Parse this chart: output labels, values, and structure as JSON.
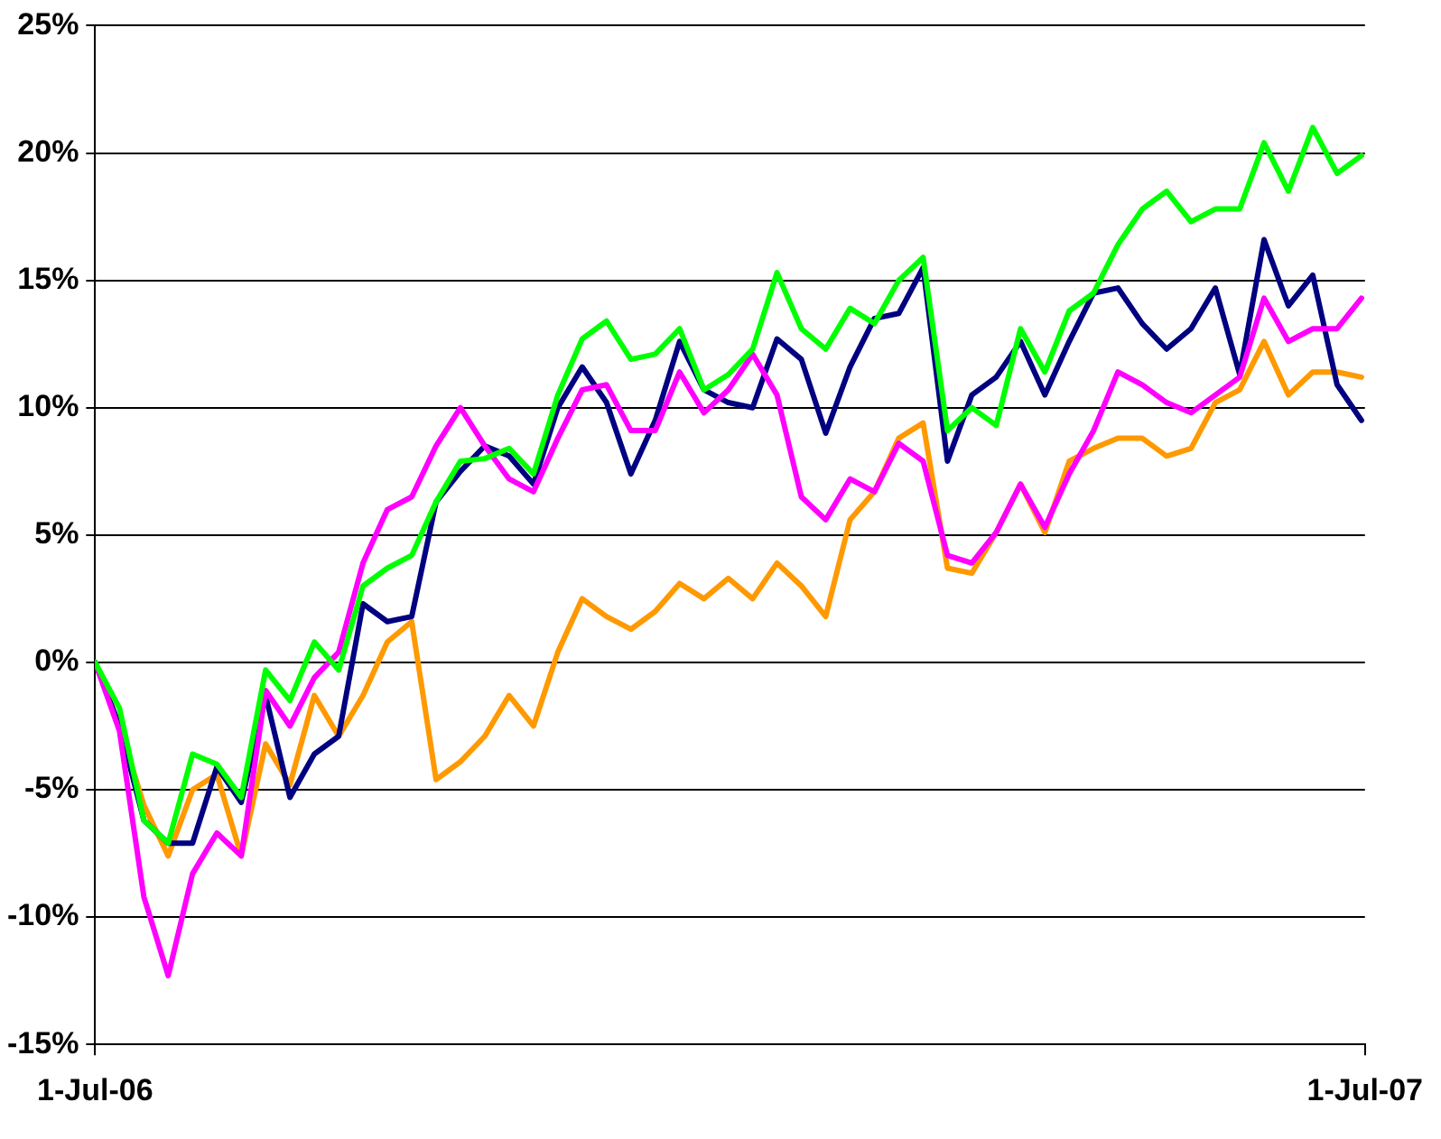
{
  "chart_data": {
    "type": "line",
    "x": [
      "2006-07-01",
      "2006-07-08",
      "2006-07-15",
      "2006-07-22",
      "2006-07-29",
      "2006-08-05",
      "2006-08-12",
      "2006-08-19",
      "2006-08-26",
      "2006-09-02",
      "2006-09-09",
      "2006-09-16",
      "2006-09-23",
      "2006-09-30",
      "2006-10-07",
      "2006-10-14",
      "2006-10-21",
      "2006-10-28",
      "2006-11-04",
      "2006-11-11",
      "2006-11-18",
      "2006-11-25",
      "2006-12-02",
      "2006-12-09",
      "2006-12-16",
      "2006-12-23",
      "2006-12-30",
      "2007-01-06",
      "2007-01-13",
      "2007-01-20",
      "2007-01-27",
      "2007-02-03",
      "2007-02-10",
      "2007-02-17",
      "2007-02-24",
      "2007-03-03",
      "2007-03-10",
      "2007-03-17",
      "2007-03-24",
      "2007-03-31",
      "2007-04-07",
      "2007-04-14",
      "2007-04-21",
      "2007-04-28",
      "2007-05-05",
      "2007-05-12",
      "2007-05-19",
      "2007-05-26",
      "2007-06-02",
      "2007-06-09",
      "2007-06-16",
      "2007-06-23",
      "2007-06-30"
    ],
    "series": [
      {
        "color": "#ff9900",
        "values": [
          0,
          -2.5,
          -5.6,
          -7.6,
          -5.0,
          -4.4,
          -7.6,
          -3.2,
          -4.8,
          -1.3,
          -2.9,
          -1.3,
          0.8,
          1.6,
          -4.6,
          -3.9,
          -2.9,
          -1.3,
          -2.5,
          0.4,
          2.5,
          1.8,
          1.3,
          2.0,
          3.1,
          2.5,
          3.3,
          2.5,
          3.9,
          3.0,
          1.8,
          5.6,
          6.7,
          8.8,
          9.4,
          3.7,
          3.5,
          5.1,
          7.0,
          5.1,
          7.9,
          8.4,
          8.8,
          8.8,
          8.1,
          8.4,
          10.2,
          10.7,
          12.6,
          10.5,
          11.4,
          11.4,
          11.2
        ]
      },
      {
        "color": "#000080",
        "values": [
          0,
          -2.5,
          -6.2,
          -7.1,
          -7.1,
          -4.1,
          -5.5,
          -1.3,
          -5.3,
          -3.6,
          -2.9,
          2.3,
          1.6,
          1.8,
          6.3,
          7.5,
          8.5,
          8.1,
          7.0,
          10.0,
          11.6,
          10.2,
          7.4,
          9.5,
          12.6,
          10.7,
          10.2,
          10.0,
          12.7,
          11.9,
          9.0,
          11.6,
          13.5,
          13.7,
          15.5,
          7.9,
          10.5,
          11.2,
          12.6,
          10.5,
          12.6,
          14.5,
          14.7,
          13.3,
          12.3,
          13.1,
          14.7,
          11.3,
          16.6,
          14.0,
          15.2,
          10.9,
          9.5
        ]
      },
      {
        "color": "#ff00ff",
        "values": [
          0,
          -2.7,
          -9.2,
          -12.3,
          -8.3,
          -6.7,
          -7.6,
          -1.1,
          -2.5,
          -0.6,
          0.4,
          3.9,
          6.0,
          6.5,
          8.5,
          10.0,
          8.5,
          7.2,
          6.7,
          8.8,
          10.7,
          10.9,
          9.1,
          9.1,
          11.4,
          9.8,
          10.7,
          12.1,
          10.5,
          6.5,
          5.6,
          7.2,
          6.7,
          8.6,
          7.9,
          4.2,
          3.9,
          5.1,
          7.0,
          5.3,
          7.4,
          9.1,
          11.4,
          10.9,
          10.2,
          9.8,
          10.5,
          11.2,
          14.3,
          12.6,
          13.1,
          13.1,
          14.3
        ]
      },
      {
        "color": "#00ff00",
        "values": [
          0,
          -1.8,
          -6.2,
          -7.1,
          -3.6,
          -4.0,
          -5.3,
          -0.3,
          -1.5,
          0.8,
          -0.3,
          3.0,
          3.7,
          4.2,
          6.3,
          7.9,
          8.0,
          8.4,
          7.4,
          10.5,
          12.7,
          13.4,
          11.9,
          12.1,
          13.1,
          10.7,
          11.3,
          12.3,
          15.3,
          13.1,
          12.3,
          13.9,
          13.3,
          15.0,
          15.9,
          9.1,
          10.0,
          9.3,
          13.1,
          11.4,
          13.8,
          14.5,
          16.4,
          17.8,
          18.5,
          17.3,
          17.8,
          17.8,
          20.4,
          18.5,
          21.0,
          19.2,
          19.9
        ]
      }
    ],
    "xlim": [
      "2006-07-01",
      "2007-07-01"
    ],
    "xticks": [
      {
        "value": "2006-07-01",
        "label": "1-Jul-06"
      },
      {
        "value": "2007-07-01",
        "label": "1-Jul-07"
      }
    ],
    "ylim": [
      -15,
      25
    ],
    "yticks": [
      {
        "value": -15,
        "label": "-15%"
      },
      {
        "value": -10,
        "label": "-10%"
      },
      {
        "value": -5,
        "label": "-5%"
      },
      {
        "value": 0,
        "label": "0%"
      },
      {
        "value": 5,
        "label": "5%"
      },
      {
        "value": 10,
        "label": "10%"
      },
      {
        "value": 15,
        "label": "15%"
      },
      {
        "value": 20,
        "label": "20%"
      },
      {
        "value": 25,
        "label": "25%"
      }
    ],
    "grid": "y",
    "legend": false,
    "marker": "none",
    "line_style": "solid"
  }
}
